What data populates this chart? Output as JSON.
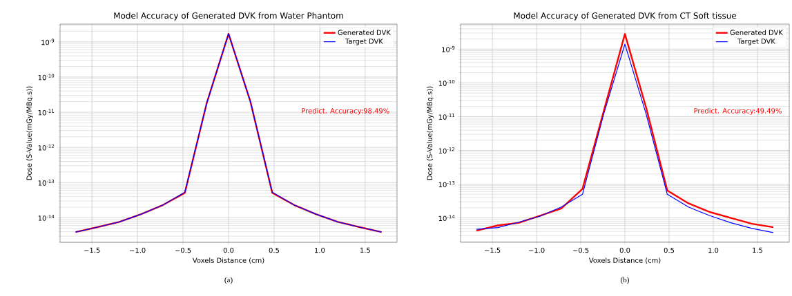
{
  "chart_data": [
    {
      "type": "line",
      "title": "Model Accuracy of Generated DVK from Water Phantom",
      "xlabel": "Voxels Distance (cm)",
      "ylabel": "Dose (S-Value(mGy/MBq.s))",
      "x": [
        -1.68,
        -1.44,
        -1.2,
        -0.96,
        -0.72,
        -0.48,
        -0.24,
        0,
        0.24,
        0.48,
        0.72,
        0.96,
        1.2,
        1.44,
        1.68
      ],
      "series": [
        {
          "name": "Generated DVK",
          "color": "#ff0000",
          "values": [
            3.9e-15,
            5.4e-15,
            7.6e-15,
            1.26e-14,
            2.3e-14,
            5.1e-14,
            1.8e-11,
            1.7e-09,
            2e-11,
            5.1e-14,
            2.3e-14,
            1.26e-14,
            7.6e-15,
            5.4e-15,
            3.9e-15
          ]
        },
        {
          "name": "Target DVK",
          "color": "#0000ff",
          "values": [
            3.9e-15,
            5.4e-15,
            7.6e-15,
            1.26e-14,
            2.3e-14,
            5.3e-14,
            1.8e-11,
            1.7e-09,
            2e-11,
            5.3e-14,
            2.3e-14,
            1.26e-14,
            7.6e-15,
            5.4e-15,
            3.9e-15
          ]
        }
      ],
      "xlim": [
        -1.85,
        1.85
      ],
      "ylim": [
        2e-15,
        3.2e-09
      ],
      "xticks": [
        {
          "value": -1.5,
          "label": "−1.5"
        },
        {
          "value": -1,
          "label": "−1.0"
        },
        {
          "value": -0.5,
          "label": "−0.5"
        },
        {
          "value": 0,
          "label": "0.0"
        },
        {
          "value": 0.5,
          "label": "0.5"
        },
        {
          "value": 1,
          "label": "1.0"
        },
        {
          "value": 1.5,
          "label": "1.5"
        }
      ],
      "yticks": [
        {
          "value": 1e-14,
          "label": "10$^{-14}$"
        },
        {
          "value": 1e-13,
          "label": "10$^{-13}$"
        },
        {
          "value": 1e-12,
          "label": "10$^{-12}$"
        },
        {
          "value": 1e-11,
          "label": "10$^{-11}$"
        },
        {
          "value": 1e-10,
          "label": "10$^{-10}$"
        },
        {
          "value": 1e-09,
          "label": "10$^{-9}$"
        }
      ],
      "log": "y",
      "grid": true,
      "legend": "top right",
      "annotations": [
        "Predict. Accuracy:98.49%",
        "(a)"
      ]
    },
    {
      "type": "line",
      "title": "Model Accuracy of Generated DVK from CT Soft tissue",
      "xlabel": "Voxels Distance (cm)",
      "ylabel": "Dose (S-Value(mGy/MBq.s))",
      "x": [
        -1.68,
        -1.44,
        -1.2,
        -0.96,
        -0.72,
        -0.48,
        -0.24,
        0,
        0.24,
        0.48,
        0.72,
        0.96,
        1.2,
        1.44,
        1.68
      ],
      "series": [
        {
          "name": "Generated DVK",
          "color": "#ff0000",
          "values": [
            4.2e-15,
            6e-15,
            7.2e-15,
            1.17e-14,
            1.9e-14,
            7.3e-14,
            1.45e-11,
            2.8e-09,
            1.85e-11,
            6.5e-14,
            2.7e-14,
            1.5e-14,
            1e-14,
            6.7e-15,
            5.3e-15
          ]
        },
        {
          "name": "Target DVK",
          "color": "#0000ff",
          "values": [
            4.6e-15,
            5.2e-15,
            7.5e-15,
            1.13e-14,
            2.1e-14,
            5e-14,
            1.2e-11,
            1.4e-09,
            1.2e-11,
            5e-14,
            2.1e-14,
            1.17e-14,
            7.2e-15,
            4.9e-15,
            3.7e-15
          ]
        }
      ],
      "xlim": [
        -1.86,
        1.86
      ],
      "ylim": [
        1.9e-15,
        5.5e-09
      ],
      "xticks": [
        {
          "value": -1.5,
          "label": "−1.5"
        },
        {
          "value": -1,
          "label": "−1.0"
        },
        {
          "value": -0.5,
          "label": "−0.5"
        },
        {
          "value": 0,
          "label": "0.0"
        },
        {
          "value": 0.5,
          "label": "0.5"
        },
        {
          "value": 1,
          "label": "1.0"
        },
        {
          "value": 1.5,
          "label": "1.5"
        }
      ],
      "yticks": [
        {
          "value": 1e-14,
          "label": "10$^{-14}$"
        },
        {
          "value": 1e-13,
          "label": "10$^{-13}$"
        },
        {
          "value": 1e-12,
          "label": "10$^{-12}$"
        },
        {
          "value": 1e-11,
          "label": "10$^{-11}$"
        },
        {
          "value": 1e-10,
          "label": "10$^{-10}$"
        },
        {
          "value": 1e-09,
          "label": "10$^{-9}$"
        }
      ],
      "log": "y",
      "grid": true,
      "legend": "top right",
      "annotations": [
        "Predict. Accuracy:49.49%",
        "(b)"
      ]
    }
  ]
}
